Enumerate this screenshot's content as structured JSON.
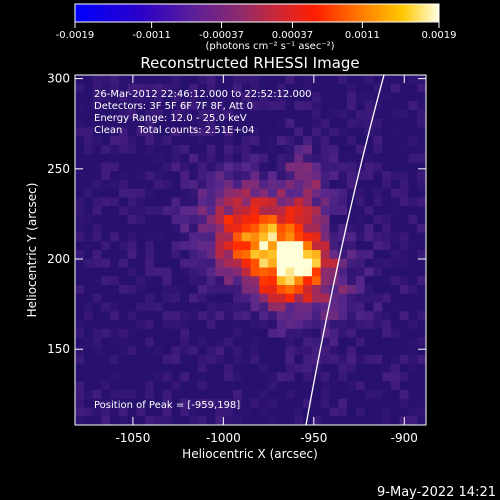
{
  "colorbar": {
    "ticks": [
      "-0.0019",
      "-0.0011",
      "-0.00037",
      "0.00037",
      "0.0011",
      "0.0019"
    ],
    "tick_values": [
      -0.0019,
      -0.0011,
      -0.00037,
      0.00037,
      0.0011,
      0.0019
    ],
    "unit_label": "(photons cm⁻² s⁻¹ asec⁻²)"
  },
  "title": "Reconstructed RHESSI Image",
  "info_lines": [
    "26-Mar-2012 22:46:12.000 to 22:52:12.000",
    "Detectors: 3F 5F 6F 7F 8F, Att 0",
    "Energy Range: 12.0 - 25.0 keV",
    "Clean     Total counts: 2.51E+04"
  ],
  "peak_label": "Position of Peak = [-959,198]",
  "x_axis": {
    "label": "Heliocentric X (arcsec)",
    "range": [
      -1082,
      -888
    ],
    "ticks": [
      -1050,
      -1000,
      -950,
      -900
    ],
    "tick_labels": [
      "-1050",
      "-1000",
      "-950",
      "-900"
    ]
  },
  "y_axis": {
    "label": "Heliocentric Y (arcsec)",
    "range": [
      108,
      302
    ],
    "ticks": [
      150,
      200,
      250,
      300
    ],
    "tick_labels": [
      "150",
      "200",
      "250",
      "300"
    ]
  },
  "peak": [
    -959,
    198
  ],
  "timestamp": "9-May-2022 14:21",
  "colors": {
    "background": "#000000",
    "foreground": "#ffffff",
    "limb": "#ffffff"
  }
}
